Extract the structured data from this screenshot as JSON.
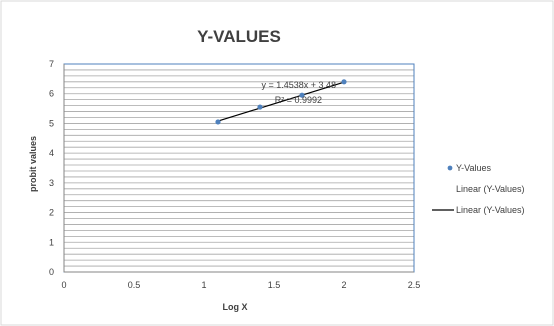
{
  "chart_data": {
    "type": "scatter",
    "title": "Y-VALUES",
    "xlabel": "Log X",
    "ylabel": "probit values",
    "xlim": [
      0,
      2.5
    ],
    "ylim": [
      0,
      7
    ],
    "x_ticks": [
      "0",
      "0.5",
      "1",
      "1.5",
      "2",
      "2.5"
    ],
    "y_ticks": [
      "0",
      "1",
      "2",
      "3",
      "4",
      "5",
      "6",
      "7"
    ],
    "grid": "horizontal",
    "legend_position": "right",
    "series": [
      {
        "name": "Y-Values",
        "points": [
          {
            "x": 1.1,
            "y": 5.05
          },
          {
            "x": 1.4,
            "y": 5.55
          },
          {
            "x": 1.7,
            "y": 5.95
          },
          {
            "x": 2.0,
            "y": 6.4
          }
        ],
        "color": "#4F81BD"
      }
    ],
    "trendline": {
      "slope": 1.4538,
      "intercept": 3.48,
      "x_start": 1.1,
      "x_end": 2.0,
      "color": "#000000"
    },
    "annotations": {
      "equation": "y = 1.4538x + 3.48",
      "r_squared": "R² = 0.9992"
    },
    "legend": [
      {
        "label": "Y-Values",
        "marker": "dot"
      },
      {
        "label": "Linear (Y-Values)",
        "marker": "none"
      },
      {
        "label": "Linear (Y-Values)",
        "marker": "line"
      }
    ],
    "colors": {
      "plot_border": "#4F81BD",
      "gridline": "#A6A6A6",
      "axis": "#868686"
    }
  }
}
